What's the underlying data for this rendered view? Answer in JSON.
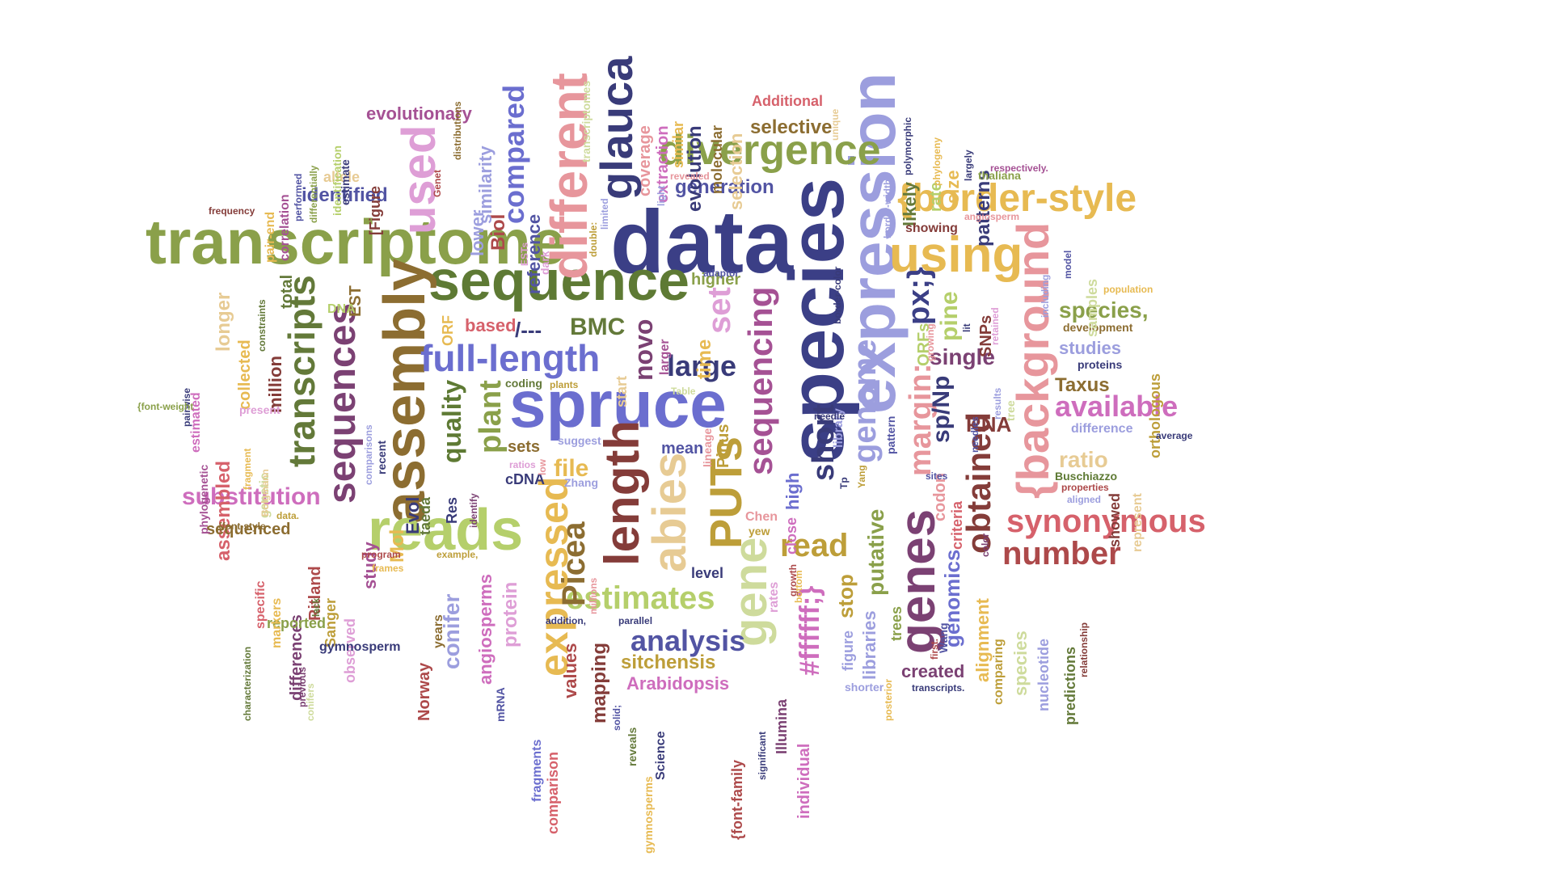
{
  "word_cloud": {
    "words": [
      {
        "text": "data",
        "color": "#3b3f86"
      },
      {
        "text": "transcriptome",
        "color": "#8aa04a"
      },
      {
        "text": "sequence",
        "color": "#5e7a34"
      },
      {
        "text": "spruce",
        "color": "#6b6ecf"
      },
      {
        "text": "species",
        "color": "#3b3f86"
      },
      {
        "text": "expression",
        "color": "#9c9ede"
      },
      {
        "text": "assembly",
        "color": "#8c6d31"
      },
      {
        "text": "reads",
        "color": "#b5cf6b"
      },
      {
        "text": "different",
        "color": "#e7969c"
      },
      {
        "text": "divergence",
        "color": "#8aa04a"
      },
      {
        "text": "{border-style",
        "color": "#e7ba52"
      },
      {
        "text": "{background",
        "color": "#e7969c"
      },
      {
        "text": "using",
        "color": "#e7ba52"
      },
      {
        "text": "full-length",
        "color": "#6b6ecf"
      },
      {
        "text": "glauca",
        "color": "#393b79"
      },
      {
        "text": "length",
        "color": "#843c39"
      },
      {
        "text": "abies",
        "color": "#e7cb94"
      },
      {
        "text": "PUTs",
        "color": "#bd9e39"
      },
      {
        "text": "genes",
        "color": "#7b4173"
      },
      {
        "text": "gene",
        "color": "#cedb9c"
      },
      {
        "text": "genome",
        "color": "#9c9ede"
      },
      {
        "text": "sequences",
        "color": "#7b4173"
      },
      {
        "text": "transcripts",
        "color": "#637939"
      },
      {
        "text": "used",
        "color": "#de9ed6"
      },
      {
        "text": "synonymous",
        "color": "#d6616b"
      },
      {
        "text": "number",
        "color": "#ad494a"
      },
      {
        "text": "obtained",
        "color": "#843c39"
      },
      {
        "text": "available",
        "color": "#ce6dbd"
      },
      {
        "text": "sequencing",
        "color": "#a55194"
      },
      {
        "text": "short",
        "color": "#393b79"
      },
      {
        "text": "margin:",
        "color": "#e7969c"
      },
      {
        "text": "estimates",
        "color": "#b5cf6b"
      },
      {
        "text": "analysis",
        "color": "#5254a3"
      },
      {
        "text": "expressed",
        "color": "#e7ba52"
      },
      {
        "text": "Picea",
        "color": "#8c6d31"
      },
      {
        "text": "substitution",
        "color": "#ce6dbd"
      },
      {
        "text": "compared",
        "color": "#6b6ecf"
      },
      {
        "text": "read",
        "color": "#bd9e39"
      },
      {
        "text": "set",
        "color": "#de9ed6"
      },
      {
        "text": "large",
        "color": "#393b79"
      },
      {
        "text": "novo",
        "color": "#7b4173"
      },
      {
        "text": "BMC",
        "color": "#637939"
      },
      {
        "text": "px;}",
        "color": "#3b3f86"
      },
      {
        "text": "#ffffff;}",
        "color": "#ce6dbd"
      },
      {
        "text": "putative",
        "color": "#8aa04a"
      },
      {
        "text": "single",
        "color": "#7b4173"
      },
      {
        "text": "identified",
        "color": "#5254a3"
      },
      {
        "text": "evolutionary",
        "color": "#a55194"
      },
      {
        "text": "selective",
        "color": "#8c6d31"
      },
      {
        "text": "generation",
        "color": "#5254a3"
      },
      {
        "text": "species,",
        "color": "#8aa04a"
      },
      {
        "text": "ratio",
        "color": "#e7cb94"
      },
      {
        "text": "Taxus",
        "color": "#8c6d31"
      },
      {
        "text": "studies",
        "color": "#9c9ede"
      },
      {
        "text": "RNA",
        "color": "#843c39"
      },
      {
        "text": "sp/Np",
        "color": "#393b79"
      },
      {
        "text": "pine",
        "color": "#b5cf6b"
      },
      {
        "text": "plant",
        "color": "#8aa04a"
      },
      {
        "text": "quality",
        "color": "#5e7a34"
      },
      {
        "text": "file",
        "color": "#e7ba52"
      },
      {
        "text": "sitchensis",
        "color": "#bd9e39"
      },
      {
        "text": "Arabidopsis",
        "color": "#ce6dbd"
      },
      {
        "text": "stop",
        "color": "#bd9e39"
      },
      {
        "text": "genomics",
        "color": "#6b6ecf"
      },
      {
        "text": "alignment",
        "color": "#e7ba52"
      },
      {
        "text": "codon",
        "color": "#e7969c"
      },
      {
        "text": "libraries",
        "color": "#9c9ede"
      },
      {
        "text": "created",
        "color": "#7b4173"
      },
      {
        "text": "mapping",
        "color": "#843c39"
      },
      {
        "text": "values",
        "color": "#ad494a"
      },
      {
        "text": "angiosperms",
        "color": "#ce6dbd"
      },
      {
        "text": "conifer",
        "color": "#9c9ede"
      },
      {
        "text": "protein",
        "color": "#de9ed6"
      },
      {
        "text": "study",
        "color": "#a55194"
      },
      {
        "text": "Mol",
        "color": "#e7ba52"
      },
      {
        "text": "Evol",
        "color": "#393b79"
      },
      {
        "text": "collected",
        "color": "#e7ba52"
      },
      {
        "text": "assembled",
        "color": "#d6616b"
      },
      {
        "text": "longer",
        "color": "#e7cb94"
      },
      {
        "text": "million",
        "color": "#843c39"
      },
      {
        "text": "total",
        "color": "#637939"
      },
      {
        "text": "EST",
        "color": "#8c6d31"
      },
      {
        "text": "DNA",
        "color": "#b5cf6b"
      },
      {
        "text": "based",
        "color": "#d6616b"
      },
      {
        "text": "/---",
        "color": "#393b79"
      },
      {
        "text": "ORF",
        "color": "#e7ba52"
      },
      {
        "text": "ORFs",
        "color": "#b5cf6b"
      },
      {
        "text": "SNPs",
        "color": "#843c39"
      },
      {
        "text": "higher",
        "color": "#8aa04a"
      },
      {
        "text": "time",
        "color": "#e7ba52"
      },
      {
        "text": "Biol",
        "color": "#ad494a"
      },
      {
        "text": "lower",
        "color": "#9c9ede"
      },
      {
        "text": "similarity",
        "color": "#9c9ede"
      },
      {
        "text": "reference",
        "color": "#5254a3"
      },
      {
        "text": "evolution",
        "color": "#393b79"
      },
      {
        "text": "coverage",
        "color": "#e7969c"
      },
      {
        "text": "extraction",
        "color": "#ce6dbd"
      },
      {
        "text": "similar",
        "color": "#e7ba52"
      },
      {
        "text": "molecular",
        "color": "#8c6d31"
      },
      {
        "text": "selection",
        "color": "#e7cb94"
      },
      {
        "text": "Additional",
        "color": "#d6616b"
      },
      {
        "text": "size",
        "color": "#e7ba52"
      },
      {
        "text": "rate",
        "color": "#b5cf6b"
      },
      {
        "text": "likely",
        "color": "#637939"
      },
      {
        "text": "patterns",
        "color": "#393b79"
      },
      {
        "text": "thaliana",
        "color": "#8aa04a"
      },
      {
        "text": "showing",
        "color": "#843c39"
      },
      {
        "text": "development",
        "color": "#8c6d31"
      },
      {
        "text": "orthologous",
        "color": "#bd9e39"
      },
      {
        "text": "samples",
        "color": "#cedb9c"
      },
      {
        "text": "proteins",
        "color": "#393b79"
      },
      {
        "text": "difference",
        "color": "#9c9ede"
      },
      {
        "text": "showed",
        "color": "#843c39"
      },
      {
        "text": "represent",
        "color": "#e7cb94"
      },
      {
        "text": "Buschiazzo",
        "color": "#5e7a34"
      },
      {
        "text": "properties",
        "color": "#ad494a"
      },
      {
        "text": "aligned",
        "color": "#9c9ede"
      },
      {
        "text": "average",
        "color": "#393b79"
      },
      {
        "text": "criteria",
        "color": "#d6616b"
      },
      {
        "text": "sites",
        "color": "#5254a3"
      },
      {
        "text": "species",
        "color": "#cedb9c"
      },
      {
        "text": "nucleotide",
        "color": "#9c9ede"
      },
      {
        "text": "predictions",
        "color": "#637939"
      },
      {
        "text": "comparing",
        "color": "#bd9e39"
      },
      {
        "text": "relationship",
        "color": "#843c39"
      },
      {
        "text": "Wang",
        "color": "#5254a3"
      },
      {
        "text": "first.",
        "color": "#ad494a"
      },
      {
        "text": "transcripts.",
        "color": "#393b79"
      },
      {
        "text": "trees",
        "color": "#8aa04a"
      },
      {
        "text": "figure",
        "color": "#9c9ede"
      },
      {
        "text": "shorter",
        "color": "#9c9ede"
      },
      {
        "text": "Yang",
        "color": "#bd9e39"
      },
      {
        "text": "pattern",
        "color": "#5254a3"
      },
      {
        "text": "library",
        "color": "#9c9ede"
      },
      {
        "text": "needle",
        "color": "#393b79"
      },
      {
        "text": "close",
        "color": "#ce6dbd"
      },
      {
        "text": "high",
        "color": "#6b6ecf"
      },
      {
        "text": "rates",
        "color": "#de9ed6"
      },
      {
        "text": "Chen",
        "color": "#e7969c"
      },
      {
        "text": "yew",
        "color": "#bd9e39"
      },
      {
        "text": "Illumina",
        "color": "#7b4173"
      },
      {
        "text": "individual",
        "color": "#ce6dbd"
      },
      {
        "text": "significant",
        "color": "#393b79"
      },
      {
        "text": "{font-family",
        "color": "#ad494a"
      },
      {
        "text": "level",
        "color": "#393b79"
      },
      {
        "text": "mean",
        "color": "#5254a3"
      },
      {
        "text": "Pinus",
        "color": "#bd9e39"
      },
      {
        "text": "lineage",
        "color": "#e7969c"
      },
      {
        "text": "start",
        "color": "#e7cb94"
      },
      {
        "text": "larger",
        "color": "#a55194"
      },
      {
        "text": "coding",
        "color": "#637939"
      },
      {
        "text": "plants",
        "color": "#bd9e39"
      },
      {
        "text": "sets",
        "color": "#8c6d31"
      },
      {
        "text": "suggest",
        "color": "#9c9ede"
      },
      {
        "text": "ratios",
        "color": "#de9ed6"
      },
      {
        "text": "cDNA",
        "color": "#393b79"
      },
      {
        "text": "Zhang",
        "color": "#9c9ede"
      },
      {
        "text": "millions",
        "color": "#e7969c"
      },
      {
        "text": "parallel",
        "color": "#393b79"
      },
      {
        "text": "reveals",
        "color": "#637939"
      },
      {
        "text": "Science",
        "color": "#393b79"
      },
      {
        "text": "gymnosperms",
        "color": "#e7ba52"
      },
      {
        "text": "fragments",
        "color": "#6b6ecf"
      },
      {
        "text": "comparison",
        "color": "#d6616b"
      },
      {
        "text": "mRNA",
        "color": "#5254a3"
      },
      {
        "text": "Norway",
        "color": "#ad494a"
      },
      {
        "text": "years",
        "color": "#8c6d31"
      },
      {
        "text": "observed",
        "color": "#de9ed6"
      },
      {
        "text": "Sanger",
        "color": "#bd9e39"
      },
      {
        "text": "Ritland",
        "color": "#ad494a"
      },
      {
        "text": "differences",
        "color": "#7b4173"
      },
      {
        "text": "gymnosperm",
        "color": "#393b79"
      },
      {
        "text": "reported",
        "color": "#8aa04a"
      },
      {
        "text": "specific",
        "color": "#d6616b"
      },
      {
        "text": "markers",
        "color": "#e7ba52"
      },
      {
        "text": "sequenced",
        "color": "#8c6d31"
      },
      {
        "text": "present",
        "color": "#de9ed6"
      },
      {
        "text": "genetic",
        "color": "#cedb9c"
      },
      {
        "text": "phylogenetic",
        "color": "#a55194"
      },
      {
        "text": "estimated",
        "color": "#ce6dbd"
      },
      {
        "text": "pairwise",
        "color": "#393b79"
      },
      {
        "text": "{font-weight",
        "color": "#8aa04a"
      },
      {
        "text": "frequency",
        "color": "#843c39"
      },
      {
        "text": "correlation",
        "color": "#a55194"
      },
      {
        "text": "pair-end",
        "color": "#e7ba52"
      },
      {
        "text": "allele",
        "color": "#e7cb94"
      },
      {
        "text": "estimate",
        "color": "#393b79"
      },
      {
        "text": "[Figure",
        "color": "#843c39"
      },
      {
        "text": "identification",
        "color": "#b5cf6b"
      },
      {
        "text": "differentially",
        "color": "#8aa04a"
      },
      {
        "text": "performed",
        "color": "#5254a3"
      },
      {
        "text": "Genet",
        "color": "#ad494a"
      },
      {
        "text": "distributions",
        "color": "#8c6d31"
      },
      {
        "text": "transcriptomes",
        "color": "#cedb9c"
      },
      {
        "text": "double:",
        "color": "#bd9e39"
      },
      {
        "text": "limited",
        "color": "#9c9ede"
      },
      {
        "text": "revealed",
        "color": "#e7969c"
      },
      {
        "text": "light",
        "color": "#9c9ede"
      },
      {
        "text": "adaptor",
        "color": "#5254a3"
      },
      {
        "text": "dark",
        "color": "#de9ed6"
      },
      {
        "text": "border-color",
        "color": "#393b79"
      },
      {
        "text": "border-width",
        "color": "#9c9ede"
      },
      {
        "text": "angiosperm",
        "color": "#e7969c"
      },
      {
        "text": "respectively.",
        "color": "#a55194"
      },
      {
        "text": "population",
        "color": "#e7ba52"
      },
      {
        "text": "model",
        "color": "#5254a3"
      },
      {
        "text": "including",
        "color": "#9c9ede"
      },
      {
        "text": "retained",
        "color": "#de9ed6"
      },
      {
        "text": "results",
        "color": "#9c9ede"
      },
      {
        "text": "tree",
        "color": "#cedb9c"
      },
      {
        "text": "needles",
        "color": "#5254a3"
      },
      {
        "text": "polymorphic",
        "color": "#393b79"
      },
      {
        "text": "phylogeny",
        "color": "#e7ba52"
      },
      {
        "text": "largely",
        "color": "#393b79"
      },
      {
        "text": "unique",
        "color": "#e7cb94"
      },
      {
        "text": "Res",
        "color": "#393b79"
      },
      {
        "text": "taeda",
        "color": "#637939"
      },
      {
        "text": "identify",
        "color": "#7b4173"
      },
      {
        "text": "recent",
        "color": "#393b79"
      },
      {
        "text": "comparisons",
        "color": "#9c9ede"
      },
      {
        "text": "constraints",
        "color": "#637939"
      },
      {
        "text": "fragment",
        "color": "#e7ba52"
      },
      {
        "text": "Bolgmann",
        "color": "#e7cb94"
      },
      {
        "text": "{font-style",
        "color": "#8c6d31"
      },
      {
        "text": "data.",
        "color": "#bd9e39"
      },
      {
        "text": "program",
        "color": "#ad494a"
      },
      {
        "text": "frames",
        "color": "#e7ba52"
      },
      {
        "text": "example,",
        "color": "#bd9e39"
      },
      {
        "text": "characterization",
        "color": "#637939"
      },
      {
        "text": "previous",
        "color": "#7b4173"
      },
      {
        "text": "conifers",
        "color": "#cedb9c"
      },
      {
        "text": "lack",
        "color": "#637939"
      },
      {
        "text": "addition,",
        "color": "#393b79"
      },
      {
        "text": "solid;",
        "color": "#5254a3"
      },
      {
        "text": "growing",
        "color": "#e7969c"
      },
      {
        "text": "color",
        "color": "#7b4173"
      },
      {
        "text": "bottom",
        "color": "#e7ba52"
      },
      {
        "text": "Table",
        "color": "#cedb9c"
      },
      {
        "text": "Tp",
        "color": "#393b79"
      },
      {
        "text": "lit",
        "color": "#393b79"
      },
      {
        "text": "ESTs",
        "color": "#de9ed6"
      },
      {
        "text": "posterior",
        "color": "#e7ba52"
      },
      {
        "text": "low",
        "color": "#e7969c"
      },
      {
        "text": "growth",
        "color": "#ad494a"
      }
    ]
  }
}
